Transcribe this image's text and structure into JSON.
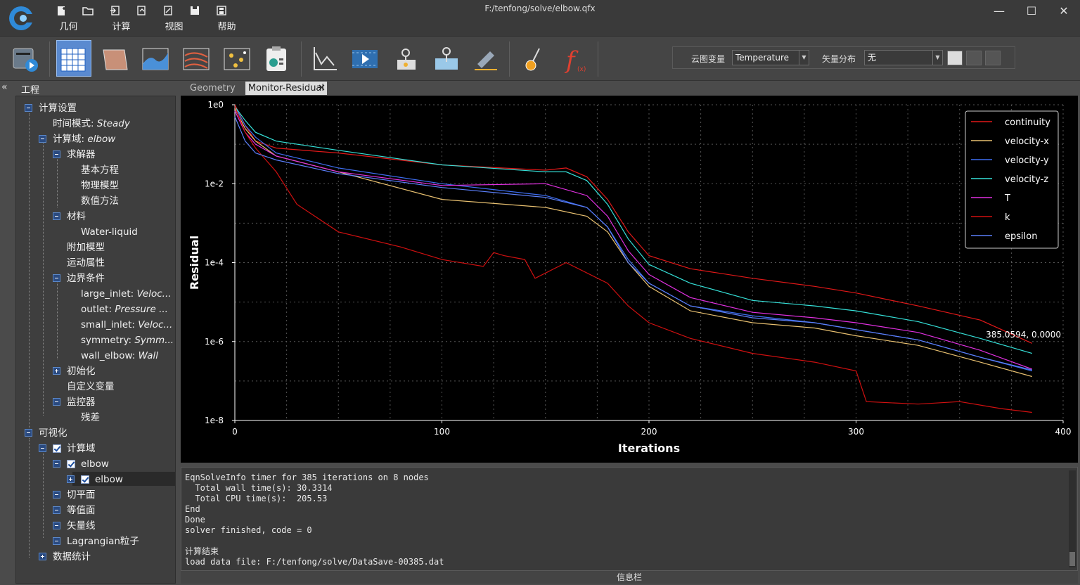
{
  "window": {
    "title": "F:/tenfong/solve/elbow.qfx",
    "minimize": "—",
    "maximize": "☐",
    "close": "✕"
  },
  "menus": [
    "几何",
    "计算",
    "视图",
    "帮助"
  ],
  "quick_tools": [
    "new-file-icon",
    "open-folder-icon",
    "import-icon",
    "export-icon",
    "export-2-icon",
    "save-icon",
    "save-as-icon"
  ],
  "ribbon": {
    "tools": [
      "solve-run-icon",
      "mesh-grid-icon",
      "surface-icon",
      "contour-plot-icon",
      "streamline-icon",
      "particle-icon",
      "report-icon",
      "residual-plot-icon",
      "animation-icon",
      "probe-point-icon",
      "probe-surface-icon",
      "ruler-icon",
      "brush-icon",
      "function-icon"
    ],
    "contour_label": "云图变量",
    "contour_value": "Temperature",
    "vector_label": "矢量分布",
    "vector_value": "无"
  },
  "panel": {
    "title": "工程",
    "collapse": "«"
  },
  "tree": {
    "calc_settings": "计算设置",
    "time_mode_label": "时间模式: ",
    "time_mode_value": "Steady",
    "domain_label": "计算域: ",
    "domain_value": "elbow",
    "solver": "求解器",
    "basic_eq": "基本方程",
    "phys_model": "物理模型",
    "num_method": "数值方法",
    "material": "材料",
    "water": "Water-liquid",
    "extra_model": "附加模型",
    "motion": "运动属性",
    "bc": "边界条件",
    "bc_items": [
      {
        "name": "large_inlet: ",
        "value": "Veloc..."
      },
      {
        "name": "outlet: ",
        "value": "Pressure ..."
      },
      {
        "name": "small_inlet: ",
        "value": "Veloc..."
      },
      {
        "name": "symmetry: ",
        "value": "Symm..."
      },
      {
        "name": "wall_elbow: ",
        "value": "Wall"
      }
    ],
    "init": "初始化",
    "custom_var": "自定义变量",
    "monitor": "监控器",
    "residual": "残差",
    "visual": "可视化",
    "vis_domain": "计算域",
    "elbow1": "elbow",
    "elbow2": "elbow",
    "cut_plane": "切平面",
    "isosurface": "等值面",
    "vector_line": "矢量线",
    "lagrangian": "Lagrangian粒子",
    "stats": "数据统计"
  },
  "tabs": [
    {
      "label": "Geometry",
      "active": false
    },
    {
      "label": "Monitor-Residual",
      "active": true
    }
  ],
  "chart_data": {
    "type": "line",
    "xlabel": "Iterations",
    "ylabel": "Residual",
    "xlim": [
      0,
      400
    ],
    "ylim": [
      1e-08,
      1
    ],
    "yscale": "log",
    "xticks": [
      "0",
      "100",
      "200",
      "300",
      "400"
    ],
    "yticks": [
      "1e0",
      "1e-2",
      "1e-4",
      "1e-6",
      "1e-8"
    ],
    "grid": true,
    "legend_position": "top-right",
    "annotation": "385.0594, 0.0000",
    "series": [
      {
        "name": "continuity",
        "color": "#e01818",
        "points": [
          [
            0,
            1
          ],
          [
            5,
            0.3
          ],
          [
            10,
            0.12
          ],
          [
            20,
            0.08
          ],
          [
            50,
            0.06
          ],
          [
            100,
            0.03
          ],
          [
            150,
            0.022
          ],
          [
            160,
            0.025
          ],
          [
            170,
            0.015
          ],
          [
            180,
            0.004
          ],
          [
            190,
            0.0006
          ],
          [
            200,
            0.00015
          ],
          [
            220,
            7e-05
          ],
          [
            250,
            4e-05
          ],
          [
            280,
            2.5e-05
          ],
          [
            300,
            1.7e-05
          ],
          [
            330,
            8e-06
          ],
          [
            360,
            3.5e-06
          ],
          [
            385,
            9e-07
          ]
        ]
      },
      {
        "name": "velocity-x",
        "color": "#e8c070",
        "points": [
          [
            0,
            0.8
          ],
          [
            5,
            0.25
          ],
          [
            10,
            0.12
          ],
          [
            20,
            0.05
          ],
          [
            50,
            0.02
          ],
          [
            100,
            0.004
          ],
          [
            150,
            0.0025
          ],
          [
            170,
            0.0015
          ],
          [
            180,
            0.0006
          ],
          [
            190,
            0.0001
          ],
          [
            200,
            2.5e-05
          ],
          [
            220,
            6e-06
          ],
          [
            250,
            3e-06
          ],
          [
            280,
            2.2e-06
          ],
          [
            300,
            1.4e-06
          ],
          [
            330,
            8e-07
          ],
          [
            360,
            3e-07
          ],
          [
            385,
            1.3e-07
          ]
        ]
      },
      {
        "name": "velocity-y",
        "color": "#3e6ef0",
        "points": [
          [
            0,
            0.9
          ],
          [
            5,
            0.3
          ],
          [
            10,
            0.15
          ],
          [
            20,
            0.06
          ],
          [
            50,
            0.025
          ],
          [
            100,
            0.01
          ],
          [
            150,
            0.005
          ],
          [
            170,
            0.0025
          ],
          [
            180,
            0.0008
          ],
          [
            190,
            0.00012
          ],
          [
            200,
            3e-05
          ],
          [
            220,
            8e-06
          ],
          [
            250,
            4.5e-06
          ],
          [
            280,
            3e-06
          ],
          [
            300,
            2e-06
          ],
          [
            330,
            1.1e-06
          ],
          [
            360,
            4e-07
          ],
          [
            385,
            1.8e-07
          ]
        ]
      },
      {
        "name": "velocity-z",
        "color": "#35e0d8",
        "points": [
          [
            0,
            0.9
          ],
          [
            5,
            0.4
          ],
          [
            10,
            0.2
          ],
          [
            20,
            0.12
          ],
          [
            50,
            0.07
          ],
          [
            100,
            0.03
          ],
          [
            150,
            0.02
          ],
          [
            160,
            0.02
          ],
          [
            170,
            0.012
          ],
          [
            180,
            0.003
          ],
          [
            190,
            0.0004
          ],
          [
            200,
            9e-05
          ],
          [
            220,
            3e-05
          ],
          [
            250,
            1.1e-05
          ],
          [
            280,
            8e-06
          ],
          [
            300,
            6e-06
          ],
          [
            330,
            3.2e-06
          ],
          [
            360,
            1.2e-06
          ],
          [
            385,
            5e-07
          ]
        ]
      },
      {
        "name": "T",
        "color": "#e030e0",
        "points": [
          [
            0,
            0.7
          ],
          [
            5,
            0.2
          ],
          [
            10,
            0.1
          ],
          [
            20,
            0.05
          ],
          [
            50,
            0.02
          ],
          [
            100,
            0.009
          ],
          [
            150,
            0.01
          ],
          [
            170,
            0.005
          ],
          [
            180,
            0.0015
          ],
          [
            190,
            0.0002
          ],
          [
            200,
            5e-05
          ],
          [
            220,
            1.3e-05
          ],
          [
            250,
            5.5e-06
          ],
          [
            280,
            4e-06
          ],
          [
            300,
            3e-06
          ],
          [
            330,
            1.7e-06
          ],
          [
            360,
            6e-07
          ],
          [
            385,
            2e-07
          ]
        ]
      },
      {
        "name": "k",
        "color": "#d01010",
        "points": [
          [
            0,
            0.9
          ],
          [
            5,
            0.2
          ],
          [
            10,
            0.08
          ],
          [
            20,
            0.02
          ],
          [
            30,
            0.003
          ],
          [
            50,
            0.0006
          ],
          [
            80,
            0.00025
          ],
          [
            100,
            0.00012
          ],
          [
            120,
            8e-05
          ],
          [
            125,
            0.00018
          ],
          [
            130,
            0.00015
          ],
          [
            140,
            0.00012
          ],
          [
            145,
            4e-05
          ],
          [
            160,
            0.0001
          ],
          [
            180,
            3e-05
          ],
          [
            190,
            8e-06
          ],
          [
            200,
            3e-06
          ],
          [
            220,
            1.2e-06
          ],
          [
            250,
            5e-07
          ],
          [
            280,
            3e-07
          ],
          [
            300,
            1.8e-07
          ],
          [
            305,
            3e-08
          ],
          [
            330,
            2.6e-08
          ],
          [
            350,
            3e-08
          ],
          [
            370,
            2e-08
          ],
          [
            385,
            1.6e-08
          ]
        ]
      },
      {
        "name": "epsilon",
        "color": "#5a7ef8",
        "points": [
          [
            0,
            0.5
          ],
          [
            5,
            0.12
          ],
          [
            10,
            0.06
          ],
          [
            20,
            0.04
          ],
          [
            50,
            0.018
          ],
          [
            100,
            0.008
          ],
          [
            150,
            0.0045
          ],
          [
            170,
            0.0025
          ],
          [
            180,
            0.0008
          ],
          [
            190,
            0.0001
          ],
          [
            200,
            3e-05
          ],
          [
            220,
            8e-06
          ],
          [
            250,
            4e-06
          ],
          [
            280,
            3e-06
          ],
          [
            300,
            2e-06
          ],
          [
            330,
            1.1e-06
          ],
          [
            360,
            4e-07
          ],
          [
            385,
            1.9e-07
          ]
        ]
      }
    ]
  },
  "console": {
    "lines": [
      "EqnSolveInfo timer for 385 iterations on 8 nodes",
      "  Total wall time(s): 30.3314",
      "  Total CPU time(s):  205.53",
      "End",
      "Done",
      "solver finished, code = 0",
      "",
      "计算结束",
      "load data file: F:/tenfong/solve/DataSave-00385.dat"
    ]
  },
  "statusbar": {
    "label": "信息栏"
  }
}
